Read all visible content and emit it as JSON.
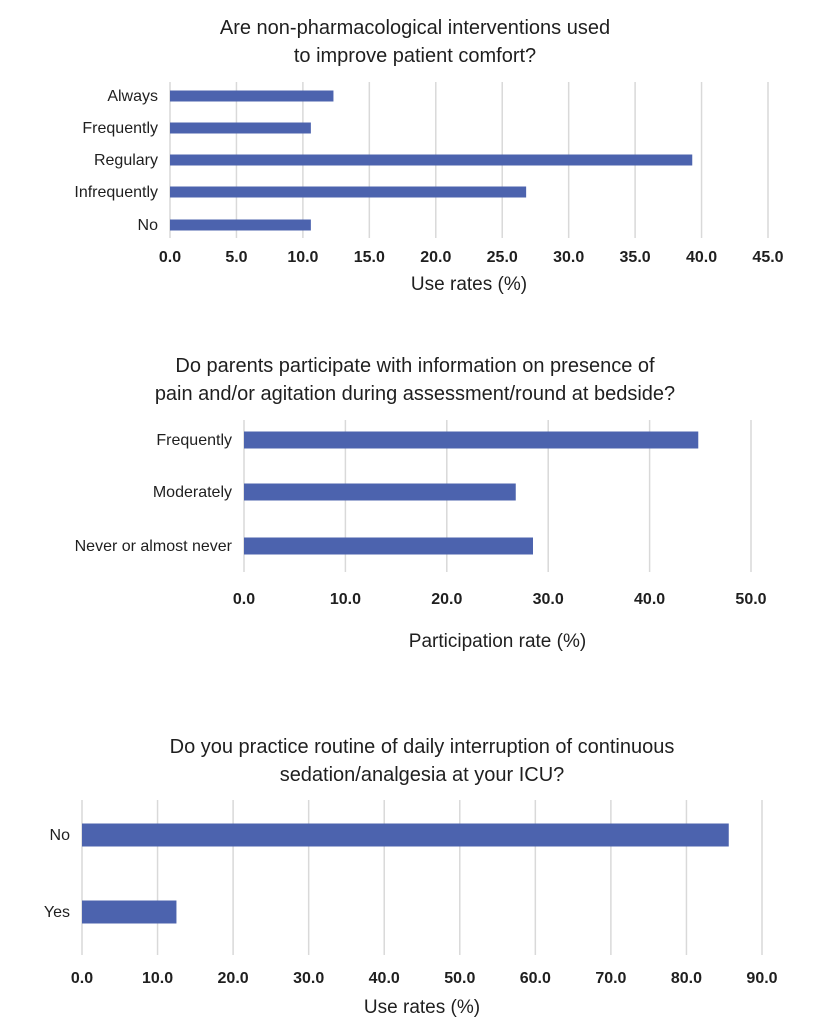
{
  "chart_data": [
    {
      "type": "bar",
      "orientation": "horizontal",
      "title_lines": [
        "Are non-pharmacological interventions used",
        "to improve patient comfort?"
      ],
      "categories": [
        "Always",
        "Frequently",
        "Regulary",
        "Infrequently",
        "No"
      ],
      "values": [
        12.3,
        10.6,
        39.3,
        26.8,
        10.6
      ],
      "xlabel": "Use rates (%)",
      "xlim": [
        0,
        45
      ],
      "xticks": [
        "0.0",
        "5.0",
        "10.0",
        "15.0",
        "20.0",
        "25.0",
        "30.0",
        "35.0",
        "40.0",
        "45.0"
      ],
      "grid": true,
      "color": "#4c63ae"
    },
    {
      "type": "bar",
      "orientation": "horizontal",
      "title_lines": [
        "Do parents participate with information on presence of",
        "pain and/or agitation during assessment/round at bedside?"
      ],
      "categories": [
        "Frequently",
        "Moderately",
        "Never or almost never"
      ],
      "values": [
        44.8,
        26.8,
        28.5
      ],
      "xlabel": "Participation rate (%)",
      "xlim": [
        0,
        50
      ],
      "xticks": [
        "0.0",
        "10.0",
        "20.0",
        "30.0",
        "40.0",
        "50.0"
      ],
      "grid": true,
      "color": "#4c63ae"
    },
    {
      "type": "bar",
      "orientation": "horizontal",
      "title_lines": [
        "Do you practice routine of daily interruption of continuous",
        "sedation/analgesia at your ICU?"
      ],
      "categories": [
        "No",
        "Yes"
      ],
      "values": [
        85.6,
        12.5
      ],
      "xlabel": "Use rates (%)",
      "xlim": [
        0,
        90
      ],
      "xticks": [
        "0.0",
        "10.0",
        "20.0",
        "30.0",
        "40.0",
        "50.0",
        "60.0",
        "70.0",
        "80.0",
        "90.0"
      ],
      "grid": true,
      "color": "#4c63ae"
    }
  ]
}
